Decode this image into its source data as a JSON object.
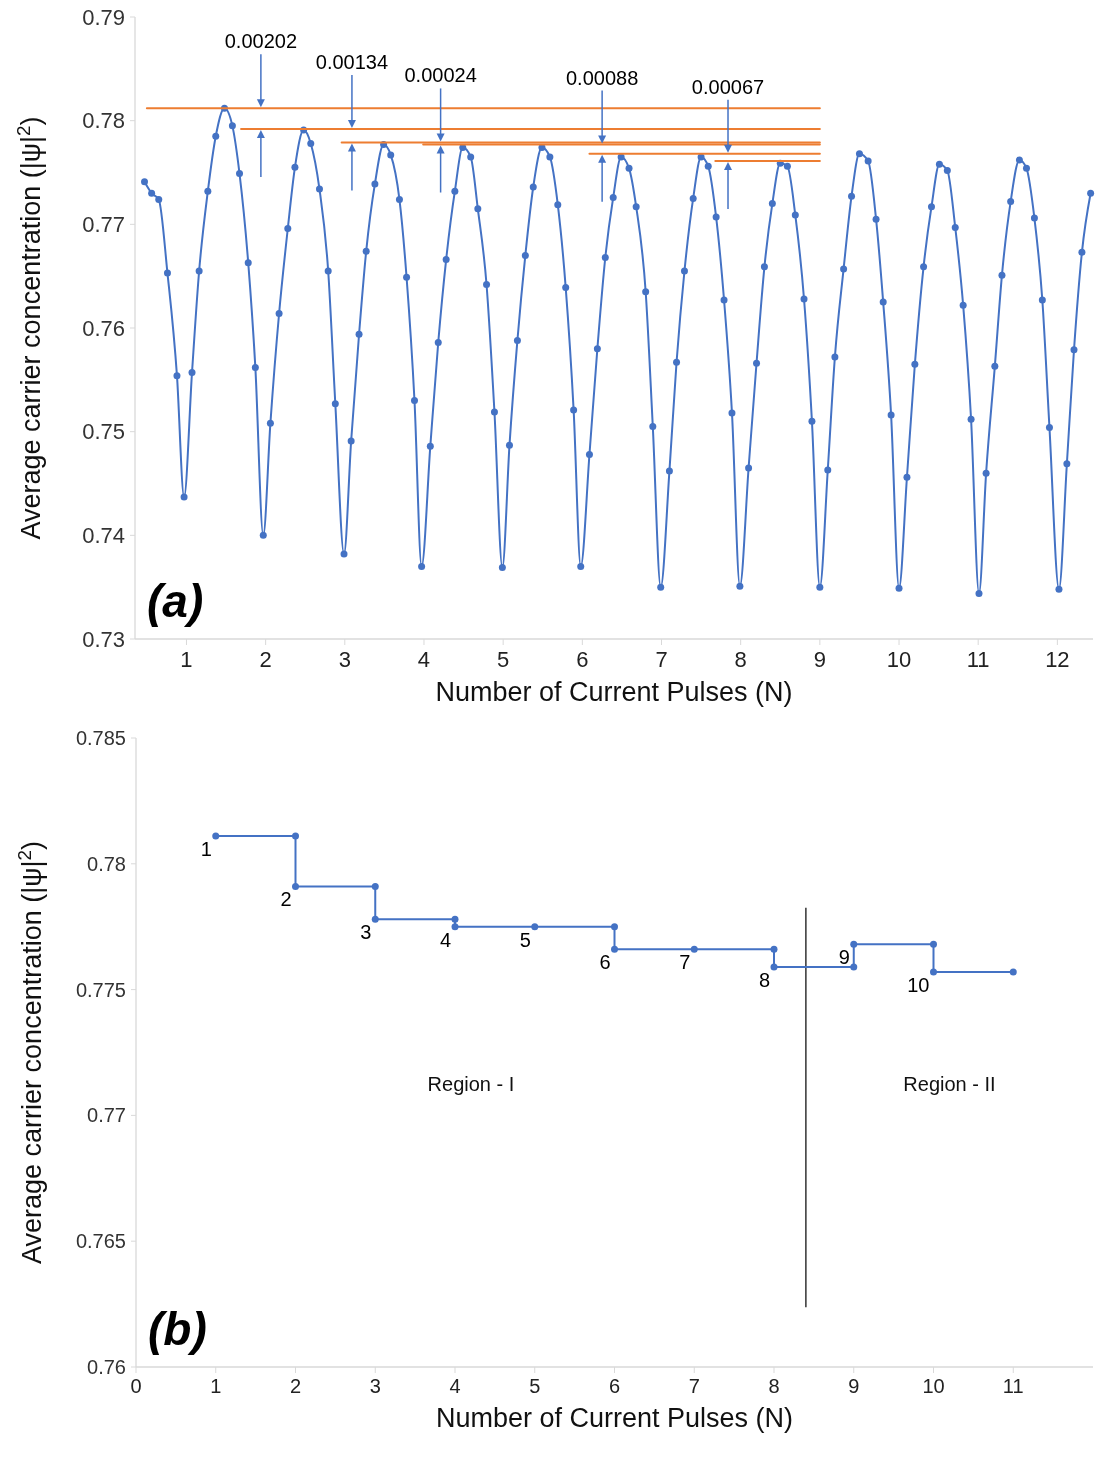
{
  "chart_data": [
    {
      "type": "line",
      "xlabel": "Number of Current Pulses (N)",
      "ylabel": "Average carrier concentration (|ψ|$^{2}$)",
      "xlim": [
        0.35,
        12.45
      ],
      "ylim": [
        0.73,
        0.79
      ],
      "xticks": [
        1,
        2,
        3,
        4,
        5,
        6,
        7,
        8,
        9,
        10,
        11,
        12
      ],
      "yticks": [
        0.73,
        0.74,
        0.75,
        0.76,
        0.77,
        0.78,
        0.79
      ],
      "grid": false,
      "marker": "circle",
      "series": [
        {
          "color": "#4472c4",
          "x": [
            0.47,
            0.56,
            0.65,
            0.76,
            0.88,
            0.97,
            1.07,
            1.16,
            1.27,
            1.37,
            1.48,
            1.58,
            1.67,
            1.78,
            1.87,
            1.97,
            2.06,
            2.17,
            2.28,
            2.37,
            2.48,
            2.57,
            2.68,
            2.79,
            2.88,
            2.99,
            3.08,
            3.18,
            3.27,
            3.38,
            3.49,
            3.58,
            3.69,
            3.78,
            3.88,
            3.97,
            4.08,
            4.18,
            4.28,
            4.39,
            4.49,
            4.59,
            4.68,
            4.79,
            4.89,
            4.99,
            5.08,
            5.18,
            5.28,
            5.38,
            5.49,
            5.59,
            5.69,
            5.79,
            5.89,
            5.98,
            6.09,
            6.19,
            6.29,
            6.39,
            6.49,
            6.59,
            6.68,
            6.8,
            6.89,
            6.99,
            7.1,
            7.19,
            7.29,
            7.4,
            7.5,
            7.59,
            7.69,
            7.79,
            7.89,
            7.99,
            8.1,
            8.2,
            8.3,
            8.4,
            8.5,
            8.59,
            8.69,
            8.8,
            8.9,
            9.0,
            9.1,
            9.19,
            9.3,
            9.4,
            9.5,
            9.61,
            9.71,
            9.8,
            9.9,
            10.0,
            10.1,
            10.2,
            10.31,
            10.41,
            10.51,
            10.61,
            10.71,
            10.81,
            10.91,
            11.01,
            11.1,
            11.21,
            11.3,
            11.41,
            11.52,
            11.61,
            11.71,
            11.81,
            11.9,
            12.02,
            12.12,
            12.21,
            12.31,
            12.42
          ],
          "values": [
            0.7741,
            0.773,
            0.7724,
            0.7653,
            0.7554,
            0.7437,
            0.7557,
            0.7655,
            0.7732,
            0.7785,
            0.7812,
            0.7795,
            0.7749,
            0.7663,
            0.7562,
            0.74,
            0.7508,
            0.7614,
            0.7696,
            0.7755,
            0.7791,
            0.7778,
            0.7734,
            0.7655,
            0.7527,
            0.7382,
            0.7491,
            0.7594,
            0.7674,
            0.7739,
            0.7777,
            0.7767,
            0.7724,
            0.7649,
            0.753,
            0.737,
            0.7486,
            0.7586,
            0.7666,
            0.7732,
            0.7774,
            0.7765,
            0.7715,
            0.7642,
            0.7519,
            0.7369,
            0.7487,
            0.7588,
            0.767,
            0.7736,
            0.7774,
            0.7765,
            0.7719,
            0.7639,
            0.7521,
            0.737,
            0.7478,
            0.758,
            0.7668,
            0.7726,
            0.7765,
            0.7754,
            0.7717,
            0.7635,
            0.7505,
            0.735,
            0.7462,
            0.7567,
            0.7655,
            0.7725,
            0.7765,
            0.7756,
            0.7707,
            0.7627,
            0.7518,
            0.7351,
            0.7465,
            0.7566,
            0.7659,
            0.772,
            0.7759,
            0.7756,
            0.7709,
            0.7628,
            0.751,
            0.735,
            0.7463,
            0.7572,
            0.7657,
            0.7727,
            0.7768,
            0.7761,
            0.7705,
            0.7625,
            0.7516,
            0.7349,
            0.7456,
            0.7565,
            0.7659,
            0.7717,
            0.7758,
            0.7752,
            0.7697,
            0.7622,
            0.7512,
            0.7344,
            0.746,
            0.7563,
            0.7651,
            0.7722,
            0.7762,
            0.7754,
            0.7706,
            0.7627,
            0.7504,
            0.7348,
            0.7469,
            0.7579,
            0.7673,
            0.773
          ]
        },
        {
          "color": "#ed7d31",
          "marker": "none",
          "x": [
            0.5,
            9.0
          ],
          "values": [
            0.7812,
            0.7812
          ]
        },
        {
          "color": "#ed7d31",
          "marker": "none",
          "x": [
            1.69,
            9.0
          ],
          "values": [
            0.7792,
            0.7792
          ]
        },
        {
          "color": "#ed7d31",
          "marker": "none",
          "x": [
            2.96,
            9.0
          ],
          "values": [
            0.7779,
            0.7779
          ]
        },
        {
          "color": "#ed7d31",
          "marker": "none",
          "x": [
            3.99,
            9.0
          ],
          "values": [
            0.7777,
            0.7777
          ]
        },
        {
          "color": "#ed7d31",
          "marker": "none",
          "x": [
            6.09,
            9.0
          ],
          "values": [
            0.7768,
            0.7768
          ]
        },
        {
          "color": "#ed7d31",
          "marker": "none",
          "x": [
            7.68,
            9.0
          ],
          "values": [
            0.7761,
            0.7761
          ]
        }
      ],
      "annotations": [
        "(a)",
        {
          "text": "0.00202",
          "x": 1.94,
          "y": 0.7812
        },
        {
          "text": "0.00134",
          "x": 3.09,
          "y": 0.7792
        },
        {
          "text": "0.00024",
          "x": 4.21,
          "y": 0.7779
        },
        {
          "text": "0.00088",
          "x": 6.25,
          "y": 0.7777
        },
        {
          "text": "0.00067",
          "x": 7.84,
          "y": 0.7768
        }
      ]
    },
    {
      "type": "line",
      "xlabel": "Number of Current Pulses (N)",
      "ylabel": "Average carrier concentration (|ψ|$^{2}$)",
      "xlim": [
        0,
        12
      ],
      "ylim": [
        0.76,
        0.785
      ],
      "xticks": [
        0,
        1,
        2,
        3,
        4,
        5,
        6,
        7,
        8,
        9,
        10,
        11
      ],
      "yticks": [
        0.76,
        0.765,
        0.77,
        0.775,
        0.78,
        0.785
      ],
      "grid": false,
      "marker": "circle",
      "series": [
        {
          "color": "#4472c4",
          "x": [
            1,
            2,
            2,
            3,
            3,
            4,
            4,
            5,
            6,
            6,
            7,
            8,
            8,
            9,
            9,
            10,
            10,
            11
          ],
          "values": [
            0.7811,
            0.7811,
            0.7791,
            0.7791,
            0.7778,
            0.7778,
            0.7775,
            0.7775,
            0.7775,
            0.7766,
            0.7766,
            0.7766,
            0.7759,
            0.7759,
            0.7768,
            0.7768,
            0.7757,
            0.7757
          ]
        }
      ],
      "ref_lines": [
        {
          "axis": "x",
          "value": 8.4,
          "color": "#000000"
        }
      ],
      "annotations": [
        "(b)",
        {
          "text": "1",
          "x": 1,
          "y": 0.7811
        },
        {
          "text": "2",
          "x": 2,
          "y": 0.7791
        },
        {
          "text": "3",
          "x": 3,
          "y": 0.7778
        },
        {
          "text": "4",
          "x": 4,
          "y": 0.7775
        },
        {
          "text": "5",
          "x": 5,
          "y": 0.7775
        },
        {
          "text": "6",
          "x": 6,
          "y": 0.7766
        },
        {
          "text": "7",
          "x": 7,
          "y": 0.7766
        },
        {
          "text": "8",
          "x": 8,
          "y": 0.7759
        },
        {
          "text": "9",
          "x": 9,
          "y": 0.7768
        },
        {
          "text": "10",
          "x": 10,
          "y": 0.7757
        },
        "Region - I",
        "Region - II"
      ]
    }
  ]
}
